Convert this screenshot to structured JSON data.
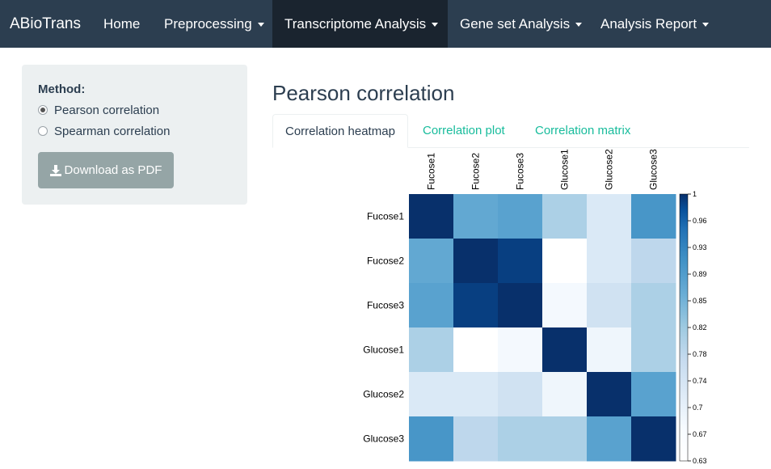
{
  "navbar": {
    "brand": "ABioTrans",
    "items": [
      {
        "label": "Home",
        "dropdown": false,
        "active": false
      },
      {
        "label": "Preprocessing",
        "dropdown": true,
        "active": false
      },
      {
        "label": "Transcriptome Analysis",
        "dropdown": true,
        "active": true
      },
      {
        "label": "Gene set Analysis",
        "dropdown": true,
        "active": false
      },
      {
        "label": "Analysis Report",
        "dropdown": true,
        "active": false
      }
    ]
  },
  "sidebar": {
    "method_label": "Method:",
    "options": [
      {
        "label": "Pearson correlation",
        "checked": true
      },
      {
        "label": "Spearman correlation",
        "checked": false
      }
    ],
    "download_label": "Download as PDF",
    "download_icon": "download-icon"
  },
  "main": {
    "title": "Pearson correlation",
    "tabs": [
      {
        "label": "Correlation heatmap",
        "active": true
      },
      {
        "label": "Correlation plot",
        "active": false
      },
      {
        "label": "Correlation matrix",
        "active": false
      }
    ]
  },
  "colors": {
    "navbar": "#2c3e50",
    "navbar_active": "#1a242f",
    "accent": "#18bc9c",
    "well": "#ecf0f1",
    "button": "#95a5a6",
    "heat_high": "#08306b",
    "heat_low": "#ffffff"
  },
  "chart_data": {
    "type": "heatmap",
    "title": "",
    "xlabel": "",
    "ylabel": "",
    "rows": [
      "Fucose1",
      "Fucose2",
      "Fucose3",
      "Glucose1",
      "Glucose2",
      "Glucose3"
    ],
    "columns": [
      "Fucose1",
      "Fucose2",
      "Fucose3",
      "Glucose1",
      "Glucose2",
      "Glucose3"
    ],
    "values": [
      [
        1.0,
        0.87,
        0.88,
        0.8,
        0.73,
        0.9
      ],
      [
        0.87,
        1.0,
        0.99,
        0.63,
        0.73,
        0.78
      ],
      [
        0.88,
        0.99,
        1.0,
        0.68,
        0.75,
        0.8
      ],
      [
        0.8,
        0.63,
        0.68,
        1.0,
        0.69,
        0.8
      ],
      [
        0.73,
        0.73,
        0.75,
        0.69,
        1.0,
        0.88
      ],
      [
        0.9,
        0.78,
        0.8,
        0.8,
        0.88,
        1.0
      ]
    ],
    "colorbar": {
      "min": 0.63,
      "max": 1,
      "ticks": [
        "1",
        "0.96",
        "0.93",
        "0.89",
        "0.85",
        "0.82",
        "0.78",
        "0.74",
        "0.7",
        "0.67",
        "0.63"
      ]
    },
    "grid": false
  }
}
